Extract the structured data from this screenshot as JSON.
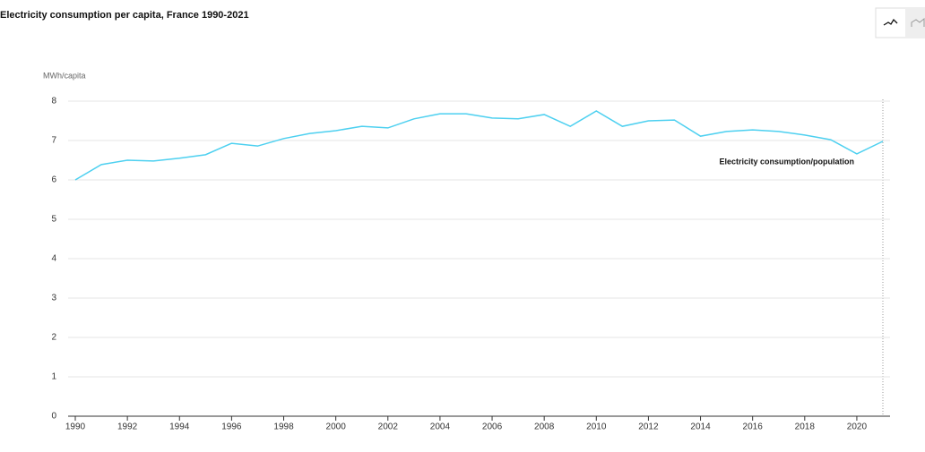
{
  "chart_data": {
    "type": "line",
    "title": "Electricity consumption per capita, France 1990-2021",
    "y_label": "MWh/capita",
    "x": [
      1990,
      1991,
      1992,
      1993,
      1994,
      1995,
      1996,
      1997,
      1998,
      1999,
      2000,
      2001,
      2002,
      2003,
      2004,
      2005,
      2006,
      2007,
      2008,
      2009,
      2010,
      2011,
      2012,
      2013,
      2014,
      2015,
      2016,
      2017,
      2018,
      2019,
      2020,
      2021
    ],
    "series": [
      {
        "name": "Electricity consumption/population",
        "color": "#4dd0f0",
        "values": [
          6.0,
          6.39,
          6.5,
          6.48,
          6.55,
          6.64,
          6.93,
          6.86,
          7.05,
          7.18,
          7.25,
          7.36,
          7.32,
          7.55,
          7.68,
          7.68,
          7.57,
          7.55,
          7.66,
          7.36,
          7.75,
          7.36,
          7.5,
          7.52,
          7.11,
          7.23,
          7.27,
          7.23,
          7.14,
          7.02,
          6.66,
          6.98
        ]
      }
    ],
    "xlim": [
      1990,
      2021
    ],
    "xticks": [
      1990,
      1992,
      1994,
      1996,
      1998,
      2000,
      2002,
      2004,
      2006,
      2008,
      2010,
      2012,
      2014,
      2016,
      2018,
      2020
    ],
    "ylim": [
      0,
      8
    ],
    "yticks": [
      0,
      1,
      2,
      3,
      4,
      5,
      6,
      7,
      8
    ],
    "grid": true
  }
}
